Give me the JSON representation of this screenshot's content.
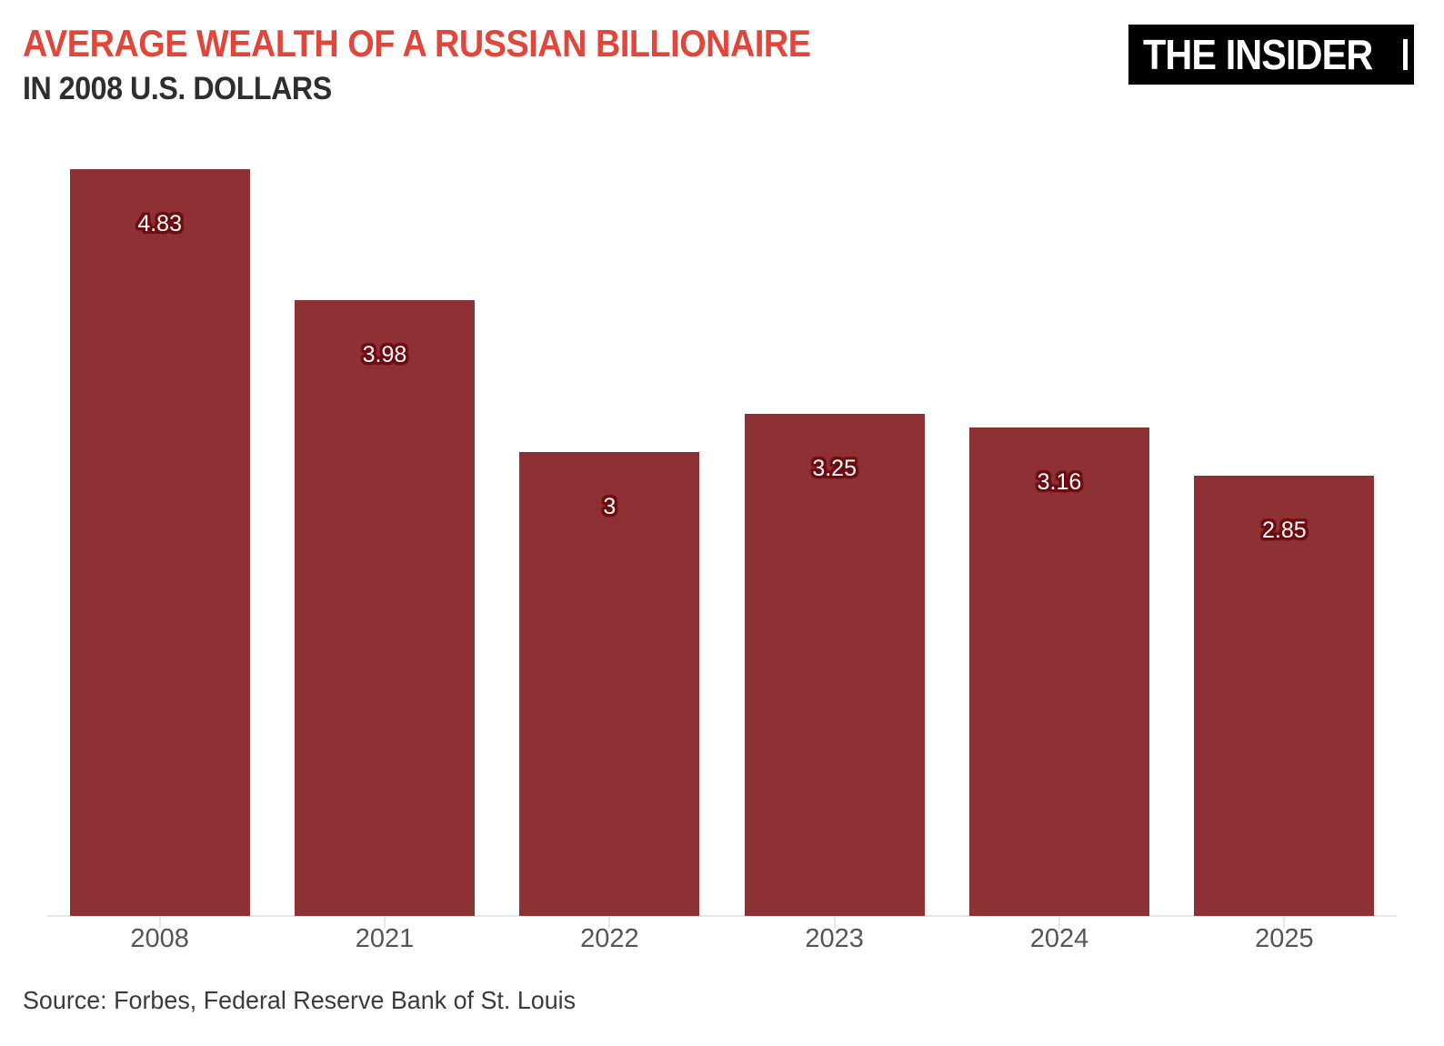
{
  "header": {
    "title": "AVERAGE WEALTH OF A RUSSIAN BILLIONAIRE",
    "subtitle": "IN 2008 U.S. DOLLARS",
    "logo_text": "THE INSIDER"
  },
  "chart_data": {
    "type": "bar",
    "title": "AVERAGE WEALTH OF A RUSSIAN BILLIONAIRE",
    "subtitle": "IN 2008 U.S. DOLLARS",
    "categories": [
      "2008",
      "2021",
      "2022",
      "2023",
      "2024",
      "2025"
    ],
    "values": [
      4.83,
      3.98,
      3,
      3.25,
      3.16,
      2.85
    ],
    "value_labels": [
      "4.83",
      "3.98",
      "3",
      "3.25",
      "3.16",
      "2.85"
    ],
    "xlabel": "",
    "ylabel": "",
    "ylim": [
      0,
      5
    ],
    "grid": false,
    "legend": "none",
    "bar_width_fraction": 0.8
  },
  "footer": {
    "source": "Source: Forbes, Federal Reserve Bank of St. Louis"
  },
  "colors": {
    "title_text": "#e0463a",
    "subtitle_text": "#2e2e2e",
    "bar_fill": "#8e3134",
    "label_halo": "#6f0c11",
    "axis_line": "#e7e7e7",
    "axis_tick_label": "#555555",
    "source_text": "#3b3b3b",
    "logo_bg": "#000000",
    "logo_text": "#ffffff"
  }
}
